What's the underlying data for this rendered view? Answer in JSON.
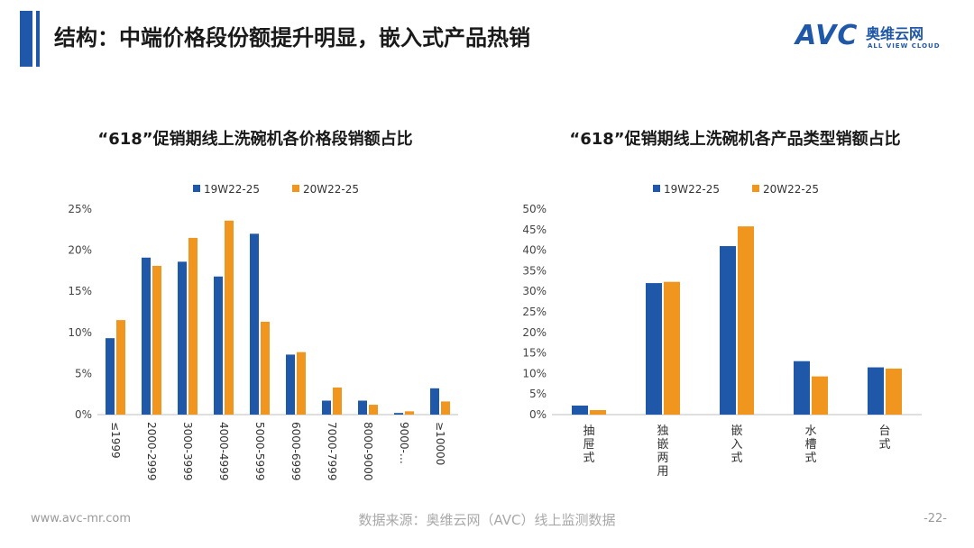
{
  "page": {
    "title": "结构：中端价格段份额提升明显，嵌入式产品热销",
    "logo_mark": "AVC",
    "logo_cn": "奥维云网",
    "logo_en": "ALL VIEW CLOUD",
    "footer_left": "www.avc-mr.com",
    "footer_mid": "数据来源：奥维云网（AVC）线上监测数据",
    "footer_right": "-22-"
  },
  "colors": {
    "accent": "#1f58a8",
    "series1": "#1f58a8",
    "series2": "#f0961e"
  },
  "chart_data": [
    {
      "type": "bar",
      "title": "“618”促销期线上洗碗机各价格段销额占比",
      "categories": [
        "≤1999",
        "2000-2999",
        "3000-3999",
        "4000-4999",
        "5000-5999",
        "6000-6999",
        "7000-7999",
        "8000-9000",
        "9000-…",
        "≥10000"
      ],
      "series": [
        {
          "name": "19W22-25",
          "values": [
            9.3,
            19.1,
            18.6,
            16.8,
            22.0,
            7.3,
            1.7,
            1.7,
            0.2,
            3.2
          ]
        },
        {
          "name": "20W22-25",
          "values": [
            11.5,
            18.1,
            21.5,
            23.6,
            11.3,
            7.6,
            3.3,
            1.2,
            0.4,
            1.6
          ]
        }
      ],
      "y_ticks": [
        "0%",
        "5%",
        "10%",
        "15%",
        "20%",
        "25%"
      ],
      "ylim": [
        0,
        25
      ],
      "grid": false,
      "legend": "top"
    },
    {
      "type": "bar",
      "title": "“618”促销期线上洗碗机各产品类型销额占比",
      "categories": [
        "抽屉式",
        "独嵌两用",
        "嵌入式",
        "水槽式",
        "台式"
      ],
      "series": [
        {
          "name": "19W22-25",
          "values": [
            2.2,
            32.0,
            41.0,
            13.0,
            11.5
          ]
        },
        {
          "name": "20W22-25",
          "values": [
            1.1,
            32.3,
            45.8,
            9.3,
            11.2
          ]
        }
      ],
      "y_ticks": [
        "0%",
        "5%",
        "10%",
        "15%",
        "20%",
        "25%",
        "30%",
        "35%",
        "40%",
        "45%",
        "50%"
      ],
      "ylim": [
        0,
        50
      ],
      "grid": false,
      "legend": "top"
    }
  ]
}
